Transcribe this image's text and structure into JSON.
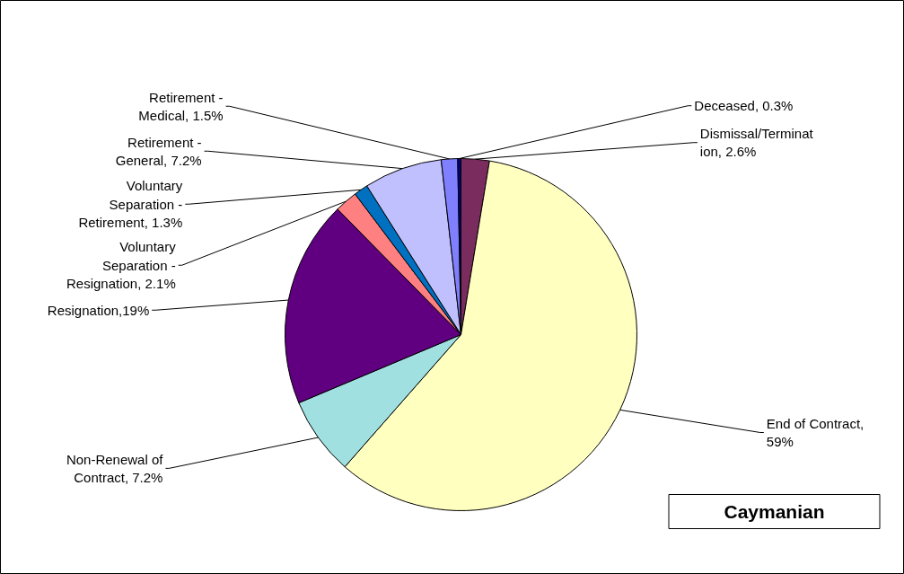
{
  "chart_data": {
    "type": "pie",
    "title": "Caymanian",
    "categories": [
      "Dismissal/Terminat\nion, 2.6%",
      "End of Contract,\n59%",
      "Non-Renewal of\nContract, 7.2%",
      "Resignation,19%",
      "Voluntary\nSeparation -\nResignation, 2.1%",
      "Voluntary\nSeparation -\nRetirement, 1.3%",
      "Retirement -\nGeneral, 7.2%",
      "Retirement -\nMedical, 1.5%",
      "Deceased, 0.3%"
    ],
    "values": [
      2.6,
      59,
      7.2,
      19,
      2.1,
      1.3,
      7.2,
      1.5,
      0.3
    ],
    "colors": [
      "#7b2c5e",
      "#ffffc0",
      "#a0e0e0",
      "#600080",
      "#ff8080",
      "#0070c0",
      "#c0c0ff",
      "#8080ff",
      "#000080"
    ]
  }
}
